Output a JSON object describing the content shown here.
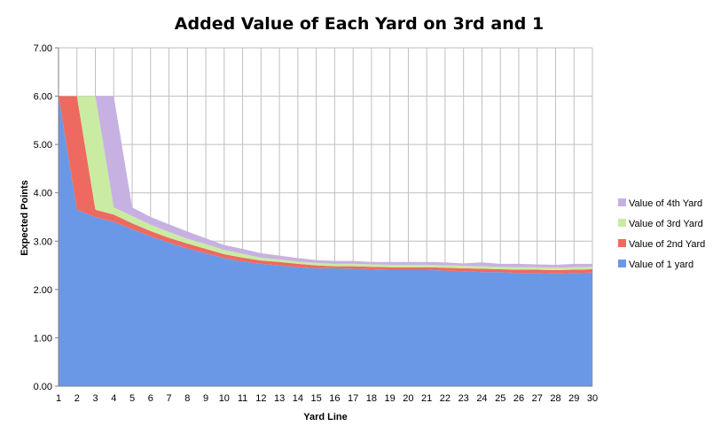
{
  "chart_data": {
    "type": "area",
    "stacked": true,
    "title": "Added Value of Each Yard on 3rd and 1",
    "xlabel": "Yard Line",
    "ylabel": "Expected Points",
    "ylim": [
      0,
      7
    ],
    "yticks": [
      "0.00",
      "1.00",
      "2.00",
      "3.00",
      "4.00",
      "5.00",
      "6.00",
      "7.00"
    ],
    "grid": true,
    "legend_position": "right",
    "categories": [
      "1",
      "2",
      "3",
      "4",
      "5",
      "6",
      "7",
      "8",
      "9",
      "10",
      "11",
      "12",
      "13",
      "14",
      "15",
      "16",
      "17",
      "18",
      "19",
      "20",
      "21",
      "22",
      "23",
      "24",
      "25",
      "26",
      "27",
      "28",
      "29",
      "30"
    ],
    "series": [
      {
        "name": "Value of 1 yard",
        "color": "#6b98e6",
        "values": [
          6.0,
          3.65,
          3.5,
          3.4,
          3.25,
          3.1,
          2.97,
          2.85,
          2.75,
          2.65,
          2.58,
          2.53,
          2.5,
          2.46,
          2.44,
          2.44,
          2.43,
          2.42,
          2.41,
          2.41,
          2.41,
          2.39,
          2.38,
          2.36,
          2.36,
          2.34,
          2.34,
          2.33,
          2.34,
          2.35
        ]
      },
      {
        "name": "Value of 2nd Yard",
        "color": "#ee6a60",
        "values": [
          0.0,
          2.35,
          0.15,
          0.15,
          0.12,
          0.11,
          0.1,
          0.1,
          0.09,
          0.08,
          0.08,
          0.07,
          0.07,
          0.07,
          0.06,
          0.04,
          0.05,
          0.05,
          0.05,
          0.05,
          0.05,
          0.06,
          0.06,
          0.07,
          0.06,
          0.07,
          0.07,
          0.07,
          0.07,
          0.07
        ]
      },
      {
        "name": "Value of 3rd Yard",
        "color": "#c9eca2",
        "values": [
          0.0,
          0.0,
          2.35,
          0.15,
          0.15,
          0.13,
          0.12,
          0.1,
          0.1,
          0.09,
          0.08,
          0.06,
          0.05,
          0.05,
          0.05,
          0.05,
          0.05,
          0.05,
          0.05,
          0.05,
          0.05,
          0.05,
          0.05,
          0.05,
          0.05,
          0.05,
          0.05,
          0.05,
          0.05,
          0.05
        ]
      },
      {
        "name": "Value of 4th Yard",
        "color": "#c7b1e3",
        "values": [
          0.0,
          0.0,
          0.0,
          2.3,
          0.18,
          0.16,
          0.16,
          0.15,
          0.12,
          0.1,
          0.1,
          0.09,
          0.08,
          0.07,
          0.06,
          0.06,
          0.06,
          0.05,
          0.06,
          0.06,
          0.06,
          0.06,
          0.05,
          0.08,
          0.06,
          0.07,
          0.06,
          0.06,
          0.07,
          0.06
        ]
      }
    ]
  }
}
